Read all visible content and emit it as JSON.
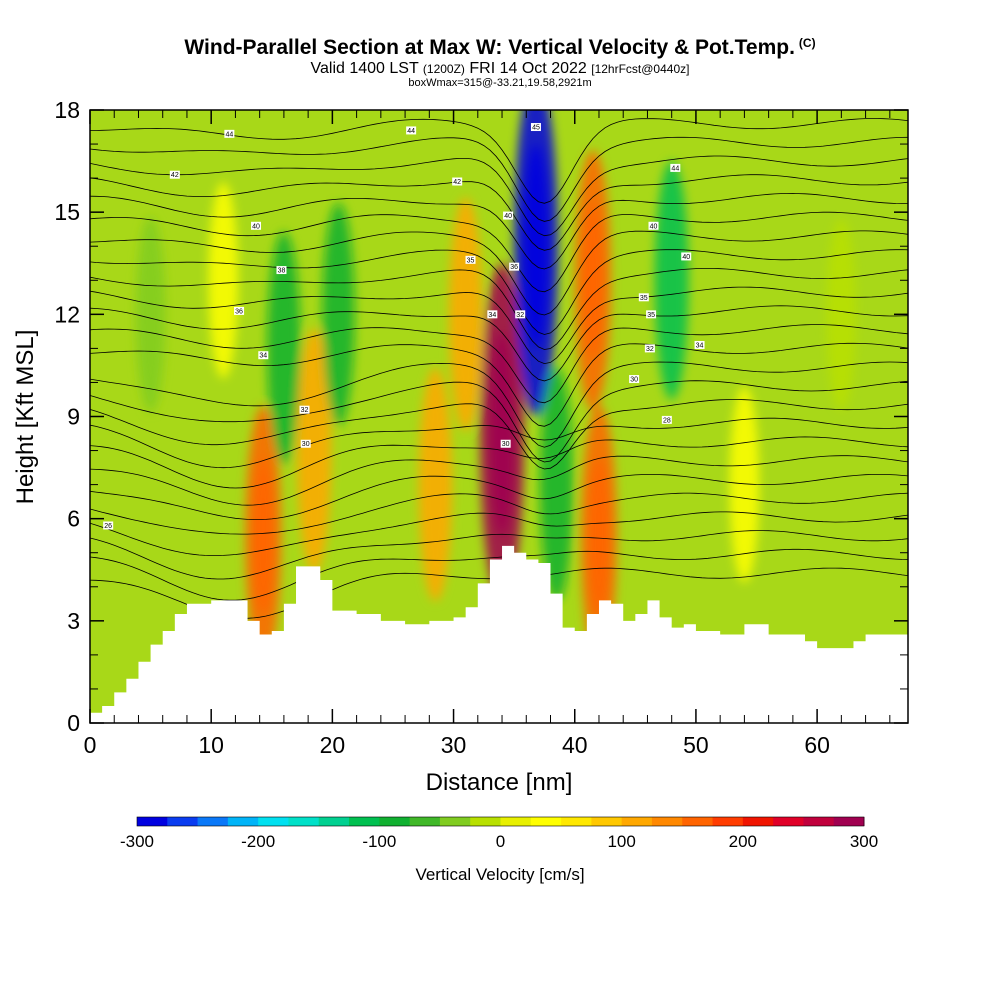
{
  "header": {
    "title": "Wind-Parallel Section at Max W: Vertical Velocity & Pot.Temp.",
    "copyright": "(C)",
    "valid_prefix": "Valid 1400 LST",
    "valid_utc": "(1200Z)",
    "valid_date": "FRI 14 Oct 2022",
    "forecast": "[12hrFcst@0440z]",
    "box_info": "boxWmax=315@-33.21,19.58,2921m"
  },
  "chart_data": {
    "type": "heatmap",
    "xlabel": "Distance [nm]",
    "ylabel": "Height [Kft MSL]",
    "xlim": [
      0,
      67.5
    ],
    "ylim": [
      0,
      18
    ],
    "x_ticks": [
      0,
      10,
      20,
      30,
      40,
      50,
      60
    ],
    "x_tick_labels": [
      "0",
      "10",
      "20",
      "30",
      "40",
      "50",
      "60"
    ],
    "y_ticks": [
      0,
      3,
      6,
      9,
      12,
      15,
      18
    ],
    "y_tick_labels": [
      "0",
      "3",
      "6",
      "9",
      "12",
      "15",
      "18"
    ],
    "colorbar": {
      "title": "Vertical Velocity [cm/s]",
      "range": [
        -300,
        300
      ],
      "tick_values": [
        -300,
        -200,
        -100,
        0,
        100,
        200,
        300
      ],
      "tick_labels": [
        "-300",
        "-200",
        "-100",
        "0",
        "100",
        "200",
        "300"
      ],
      "colors": [
        "#0000e0",
        "#0a3cf0",
        "#0a78f8",
        "#00b4f8",
        "#00e0f0",
        "#00e0c8",
        "#00d090",
        "#00c050",
        "#10b030",
        "#40b828",
        "#80cc20",
        "#b8e000",
        "#e8f000",
        "#ffff00",
        "#ffe800",
        "#ffc800",
        "#ffa800",
        "#ff8800",
        "#ff6400",
        "#ff3c00",
        "#f01400",
        "#e00028",
        "#c0003c",
        "#a00050"
      ]
    },
    "terrain_top_kft": [
      [
        0,
        0.3
      ],
      [
        1,
        0.5
      ],
      [
        2,
        0.9
      ],
      [
        3,
        1.3
      ],
      [
        4,
        1.8
      ],
      [
        5,
        2.3
      ],
      [
        6,
        2.7
      ],
      [
        7,
        3.2
      ],
      [
        8,
        3.5
      ],
      [
        9,
        3.5
      ],
      [
        10,
        3.6
      ],
      [
        12,
        3.6
      ],
      [
        13,
        3.0
      ],
      [
        14,
        2.6
      ],
      [
        15,
        2.7
      ],
      [
        16,
        3.5
      ],
      [
        17,
        4.6
      ],
      [
        18,
        4.6
      ],
      [
        19,
        4.2
      ],
      [
        20,
        3.3
      ],
      [
        22,
        3.2
      ],
      [
        24,
        3.0
      ],
      [
        26,
        2.9
      ],
      [
        28,
        3.0
      ],
      [
        30,
        3.1
      ],
      [
        31,
        3.4
      ],
      [
        32,
        4.1
      ],
      [
        33,
        4.8
      ],
      [
        34,
        5.2
      ],
      [
        35,
        5.0
      ],
      [
        36,
        4.8
      ],
      [
        37,
        4.7
      ],
      [
        38,
        3.8
      ],
      [
        39,
        2.8
      ],
      [
        40,
        2.7
      ],
      [
        41,
        3.2
      ],
      [
        42,
        3.6
      ],
      [
        43,
        3.5
      ],
      [
        44,
        3.0
      ],
      [
        45,
        3.2
      ],
      [
        46,
        3.6
      ],
      [
        47,
        3.1
      ],
      [
        48,
        2.8
      ],
      [
        49,
        2.9
      ],
      [
        50,
        2.7
      ],
      [
        52,
        2.6
      ],
      [
        54,
        2.9
      ],
      [
        56,
        2.6
      ],
      [
        58,
        2.6
      ],
      [
        59,
        2.4
      ],
      [
        60,
        2.2
      ],
      [
        62,
        2.2
      ],
      [
        63,
        2.4
      ],
      [
        64,
        2.6
      ],
      [
        67.5,
        2.6
      ]
    ],
    "w_features_cm_s": [
      {
        "x": 34,
        "z": 8.5,
        "w": 300
      },
      {
        "x": 36.8,
        "z": 14,
        "w": -300
      },
      {
        "x": 41.5,
        "z": 13,
        "w": 150
      },
      {
        "x": 42,
        "z": 5.5,
        "w": 150
      },
      {
        "x": 38.5,
        "z": 7,
        "w": -100
      },
      {
        "x": 31,
        "z": 12,
        "w": 100
      },
      {
        "x": 28.5,
        "z": 7,
        "w": 100
      },
      {
        "x": 18.5,
        "z": 8,
        "w": 120
      },
      {
        "x": 14.3,
        "z": 5.5,
        "w": 150
      },
      {
        "x": 16,
        "z": 11,
        "w": -100
      },
      {
        "x": 20.5,
        "z": 12,
        "w": -80
      },
      {
        "x": 48,
        "z": 13,
        "w": -110
      },
      {
        "x": 11,
        "z": 13,
        "w": 30
      },
      {
        "x": 5,
        "z": 12,
        "w": -30
      },
      {
        "x": 54,
        "z": 7,
        "w": 30
      },
      {
        "x": 62,
        "z": 12,
        "w": -20
      }
    ],
    "theta_contour_labels": [
      {
        "text": "44",
        "x": 11.5,
        "z": 17.3
      },
      {
        "text": "44",
        "x": 26.5,
        "z": 17.4
      },
      {
        "text": "45",
        "x": 36.8,
        "z": 17.5
      },
      {
        "text": "42",
        "x": 7,
        "z": 16.1
      },
      {
        "text": "42",
        "x": 30.3,
        "z": 15.9
      },
      {
        "text": "44",
        "x": 48.3,
        "z": 16.3
      },
      {
        "text": "40",
        "x": 13.7,
        "z": 14.6
      },
      {
        "text": "40",
        "x": 34.5,
        "z": 14.9
      },
      {
        "text": "40",
        "x": 46.5,
        "z": 14.6
      },
      {
        "text": "38",
        "x": 15.8,
        "z": 13.3
      },
      {
        "text": "35",
        "x": 31.4,
        "z": 13.6
      },
      {
        "text": "36",
        "x": 35,
        "z": 13.4
      },
      {
        "text": "40",
        "x": 49.2,
        "z": 13.7
      },
      {
        "text": "36",
        "x": 12.3,
        "z": 12.1
      },
      {
        "text": "34",
        "x": 33.2,
        "z": 12.0
      },
      {
        "text": "32",
        "x": 35.5,
        "z": 12.0
      },
      {
        "text": "35",
        "x": 45.7,
        "z": 12.5
      },
      {
        "text": "35",
        "x": 46.3,
        "z": 12.0
      },
      {
        "text": "34",
        "x": 14.3,
        "z": 10.8
      },
      {
        "text": "32",
        "x": 46.2,
        "z": 11.0
      },
      {
        "text": "34",
        "x": 50.3,
        "z": 11.1
      },
      {
        "text": "30",
        "x": 44.9,
        "z": 10.1
      },
      {
        "text": "32",
        "x": 17.7,
        "z": 9.2
      },
      {
        "text": "30",
        "x": 17.8,
        "z": 8.2
      },
      {
        "text": "30",
        "x": 34.3,
        "z": 8.2
      },
      {
        "text": "28",
        "x": 47.6,
        "z": 8.9
      },
      {
        "text": "26",
        "x": 1.5,
        "z": 5.8
      }
    ]
  }
}
